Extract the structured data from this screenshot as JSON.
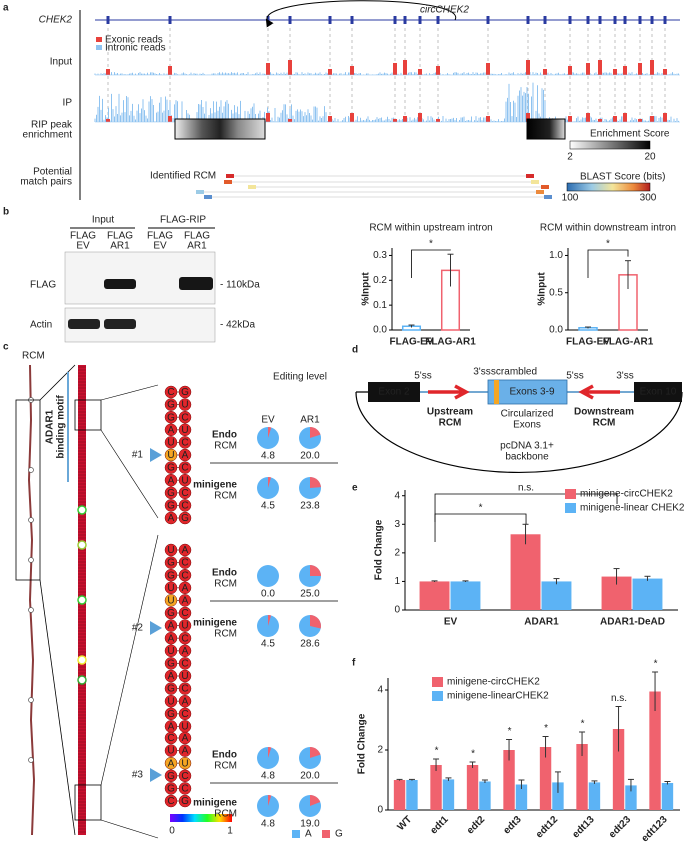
{
  "panel_labels": [
    "a",
    "b",
    "c",
    "d",
    "e",
    "f"
  ],
  "tracks": {
    "gene": "CHEK2",
    "circ": "circCHEK2",
    "legend": [
      "Exonic reads",
      "Intronic reads"
    ],
    "legend_colors": [
      "#e8413c",
      "#8fc3f0"
    ],
    "rows": [
      [
        "Input"
      ],
      [
        "IP"
      ],
      [
        "RIP peak",
        "enrichment"
      ],
      [
        "Potential",
        "match pairs"
      ]
    ],
    "enrichment_title": "Enrichment Score",
    "enrichment_ticks": [
      2,
      20
    ],
    "rcm_label": "Identified RCM",
    "blast_title": "BLAST Score (bits)",
    "blast_ticks": [
      100,
      300
    ]
  },
  "blot": {
    "groups": [
      "Input",
      "FLAG-RIP"
    ],
    "lanes": [
      [
        "FLAG",
        "EV"
      ],
      [
        "FLAG",
        "AR1"
      ],
      [
        "FLAG",
        "EV"
      ],
      [
        "FLAG",
        "AR1"
      ]
    ],
    "rows": [
      "FLAG",
      "Actin"
    ],
    "sizes": [
      "- 110kDa",
      "- 42kDa"
    ]
  },
  "chart_data": [
    {
      "type": "bar",
      "title": "RCM within upstream intron",
      "ylabel": "%Input",
      "style": "outline",
      "categories": [
        "FLAG-EV",
        "FLAG-AR1"
      ],
      "series": [
        {
          "colors": [
            "#5cb3f5",
            "#f0626e"
          ],
          "values": [
            0.015,
            0.24
          ],
          "errors": [
            0.005,
            0.065
          ]
        }
      ],
      "ylim": [
        0,
        0.33
      ],
      "yticks": [
        {
          "value": 0,
          "label": "0.0"
        },
        {
          "value": 0.1,
          "label": "0.1"
        },
        {
          "value": 0.2,
          "label": "0.2"
        },
        {
          "value": 0.3,
          "label": "0.3"
        }
      ],
      "comparisons": [
        {
          "text": "*",
          "from": 0,
          "to": 1
        }
      ]
    },
    {
      "type": "bar",
      "title": "RCM within downstream intron",
      "ylabel": "%Input",
      "style": "outline",
      "categories": [
        "FLAG-EV",
        "FLAG-AR1"
      ],
      "series": [
        {
          "colors": [
            "#5cb3f5",
            "#f0626e"
          ],
          "values": [
            0.03,
            0.74
          ],
          "errors": [
            0.01,
            0.19
          ]
        }
      ],
      "ylim": [
        0,
        1.1
      ],
      "yticks": [
        {
          "value": 0,
          "label": "0.0"
        },
        {
          "value": 0.5,
          "label": "0.5"
        },
        {
          "value": 1,
          "label": "1.0"
        }
      ],
      "comparisons": [
        {
          "text": "*",
          "from": 0,
          "to": 1
        }
      ]
    },
    {
      "type": "bar",
      "ylabel": "Fold Change",
      "style": "filled",
      "categories": [
        "EV",
        "ADAR1",
        "ADAR1-DeAD"
      ],
      "series": [
        {
          "name": "minigene-circCHEK2",
          "color": "#f0626e",
          "values": [
            1.0,
            2.65,
            1.17
          ],
          "errors": [
            0.02,
            0.35,
            0.28
          ]
        },
        {
          "name": "minigene-linear CHEK2",
          "color": "#5cb3f5",
          "values": [
            1.0,
            1.0,
            1.1
          ],
          "errors": [
            0.02,
            0.1,
            0.08
          ]
        }
      ],
      "ylim": [
        0,
        4.2
      ],
      "yticks": [
        0,
        1,
        2,
        3,
        4
      ],
      "comparisons": [
        {
          "text": "n.s.",
          "from": 0,
          "to": 2
        },
        {
          "text": "*",
          "from": 0,
          "to": 1
        }
      ]
    },
    {
      "type": "bar",
      "ylabel": "Fold Change",
      "style": "filled",
      "categories": [
        "WT",
        "edt1",
        "edt2",
        "edt3",
        "edt12",
        "edt13",
        "edt23",
        "edt123"
      ],
      "series": [
        {
          "name": "minigene-circCHEK2",
          "color": "#f0626e",
          "values": [
            1.0,
            1.5,
            1.5,
            2.0,
            2.1,
            2.2,
            2.7,
            3.95
          ],
          "errors": [
            0.02,
            0.2,
            0.1,
            0.35,
            0.35,
            0.4,
            0.75,
            0.65
          ]
        },
        {
          "name": "minigene-linearCHEK2",
          "color": "#5cb3f5",
          "values": [
            1.0,
            1.02,
            0.95,
            0.85,
            0.92,
            0.92,
            0.82,
            0.9
          ],
          "errors": [
            0.02,
            0.05,
            0.05,
            0.15,
            0.35,
            0.05,
            0.2,
            0.05
          ]
        }
      ],
      "ylim": [
        0,
        4.4
      ],
      "yticks": [
        0,
        2,
        4
      ],
      "value_annotations": [
        null,
        "*",
        "*",
        "*",
        "*",
        "*",
        "n.s.",
        "*"
      ]
    }
  ],
  "structure": {
    "title": "RCM",
    "motif": [
      "ADAR1",
      "binding motif"
    ],
    "sites": [
      "#1",
      "#2",
      "#3"
    ],
    "colorbar_ticks": [
      0,
      1
    ],
    "hairpins": [
      {
        "pairs": [
          "CG",
          "GU",
          "GC",
          "AU",
          "UC",
          "UA",
          "GC",
          "AU",
          "GC",
          "GC",
          "AG"
        ],
        "edited": [
          10
        ]
      },
      {
        "pairs": [
          "UA",
          "GC",
          "GC",
          "UA",
          "UA",
          "GC",
          "AU",
          "AC",
          "UA",
          "GC",
          "AU",
          "GC",
          "UA",
          "GC",
          "AU"
        ],
        "edited": [
          8
        ]
      },
      {
        "pairs": [
          "CA",
          "UA",
          "AU",
          "GC",
          "GC",
          "CG"
        ],
        "edited": [
          4,
          5
        ]
      }
    ],
    "editing": {
      "title": "Editing level",
      "columns": [
        "EV",
        "AR1"
      ],
      "colors": [
        "#5cb3f5",
        "#f0626e"
      ],
      "legend": [
        "A",
        "G"
      ],
      "rows": [
        {
          "name": [
            "Endo",
            "RCM"
          ],
          "values": [
            4.8,
            20.0
          ],
          "value_labels": [
            "4.8",
            "20.0"
          ]
        },
        {
          "name": [
            "minigene",
            "RCM"
          ],
          "values": [
            4.5,
            23.8
          ],
          "value_labels": [
            "4.5",
            "23.8"
          ]
        },
        {
          "name": [
            "Endo",
            "RCM"
          ],
          "values": [
            0.0,
            25.0
          ],
          "value_labels": [
            "0.0",
            "25.0"
          ]
        },
        {
          "name": [
            "minigene",
            "RCM"
          ],
          "values": [
            4.5,
            28.6
          ],
          "value_labels": [
            "4.5",
            "28.6"
          ]
        },
        {
          "name": [
            "Endo",
            "RCM"
          ],
          "values": [
            4.8,
            20.0
          ],
          "value_labels": [
            "4.8",
            "20.0"
          ]
        },
        {
          "name": [
            "minigene",
            "RCM"
          ],
          "values": [
            4.8,
            19.0
          ],
          "value_labels": [
            "4.8",
            "19.0"
          ]
        }
      ]
    }
  },
  "construct": {
    "exon_left": "Exon 2",
    "exon_right": "Exon 10",
    "ss": [
      "5'ss",
      "3'ss",
      "5'ss",
      "3'ss"
    ],
    "scrambled": "scrambled",
    "exons_mid": "Exons 3-9",
    "upstream": [
      "Upstream",
      "RCM"
    ],
    "circ": [
      "Circularized",
      "Exons"
    ],
    "downstream": [
      "Downstream",
      "RCM"
    ],
    "backbone": [
      "pcDNA 3.1+",
      "backbone"
    ]
  }
}
